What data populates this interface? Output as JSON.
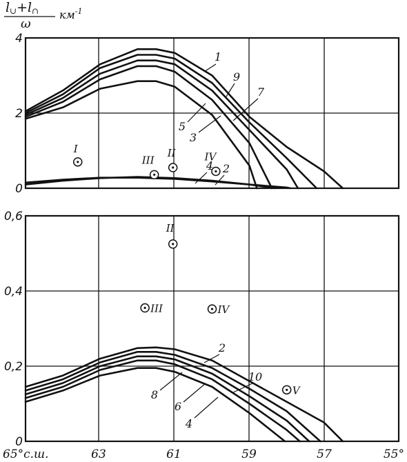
{
  "chart_data": [
    {
      "type": "line",
      "ylabel": "(l∪+l∩)/ω  км⁻¹",
      "ylim": [
        0,
        4
      ],
      "xlim": [
        65,
        55
      ],
      "grid": true,
      "y_ticks": [
        "0",
        "2",
        "4"
      ],
      "series": [
        {
          "name": "1",
          "x": [
            65,
            64,
            63,
            62,
            61.5,
            61,
            60,
            59,
            58,
            57,
            56.5
          ],
          "values": [
            2.05,
            2.6,
            3.3,
            3.7,
            3.7,
            3.6,
            3.0,
            1.9,
            1.1,
            0.45,
            0.0
          ]
        },
        {
          "name": "9",
          "x": [
            65,
            64,
            63,
            62,
            61.5,
            61,
            60,
            59,
            58,
            57.2
          ],
          "values": [
            2.0,
            2.5,
            3.2,
            3.55,
            3.55,
            3.45,
            2.8,
            1.75,
            0.8,
            0.0
          ]
        },
        {
          "name": "7",
          "x": [
            65,
            64,
            63,
            62,
            61.5,
            61,
            60,
            59,
            58,
            57.7
          ],
          "values": [
            1.95,
            2.4,
            3.05,
            3.4,
            3.4,
            3.3,
            2.6,
            1.55,
            0.5,
            0.0
          ]
        },
        {
          "name": "5",
          "x": [
            65,
            64,
            63,
            62,
            61.5,
            61,
            60,
            59,
            58.4
          ],
          "values": [
            1.9,
            2.3,
            2.9,
            3.25,
            3.25,
            3.1,
            2.35,
            1.2,
            0.0
          ]
        },
        {
          "name": "3",
          "x": [
            65,
            64,
            63,
            62,
            61.5,
            61,
            60,
            59,
            58.8
          ],
          "values": [
            1.85,
            2.15,
            2.65,
            2.85,
            2.85,
            2.7,
            1.95,
            0.6,
            0.0
          ]
        },
        {
          "name": "4",
          "x": [
            65,
            64,
            63,
            62,
            61,
            60,
            59,
            58.3
          ],
          "values": [
            0.1,
            0.2,
            0.27,
            0.3,
            0.27,
            0.2,
            0.1,
            0.0
          ]
        },
        {
          "name": "2",
          "x": [
            65,
            64,
            63,
            62,
            61,
            60,
            59,
            58,
            57.9
          ],
          "values": [
            0.15,
            0.23,
            0.28,
            0.28,
            0.25,
            0.18,
            0.1,
            0.02,
            0.0
          ]
        }
      ],
      "points": [
        {
          "label": "I",
          "x": 63.6,
          "y": 0.7
        },
        {
          "label": "III",
          "x": 61.55,
          "y": 0.36
        },
        {
          "label": "II",
          "x": 61.05,
          "y": 0.55
        },
        {
          "label": "IV",
          "x": 59.9,
          "y": 0.45
        }
      ]
    },
    {
      "type": "line",
      "ylim": [
        0,
        0.6
      ],
      "xlim": [
        65,
        55
      ],
      "grid": true,
      "y_ticks": [
        "0",
        "0,2",
        "0,4",
        "0,6"
      ],
      "x_ticks": [
        "65°с.ш.",
        "63",
        "61",
        "59",
        "57",
        "55°"
      ],
      "series": [
        {
          "name": "2",
          "x": [
            65,
            64,
            63,
            62,
            61.5,
            61,
            60,
            59,
            58,
            57,
            56.5
          ],
          "values": [
            0.145,
            0.175,
            0.22,
            0.248,
            0.25,
            0.245,
            0.215,
            0.16,
            0.105,
            0.05,
            0.0
          ]
        },
        {
          "name": "10",
          "x": [
            65,
            64,
            63,
            62,
            61.5,
            61,
            60,
            59,
            58,
            57.1
          ],
          "values": [
            0.135,
            0.165,
            0.21,
            0.238,
            0.238,
            0.23,
            0.195,
            0.14,
            0.08,
            0.0
          ]
        },
        {
          "name": "6",
          "x": [
            65,
            64,
            63,
            62,
            61.5,
            61,
            60,
            59,
            58,
            57.4
          ],
          "values": [
            0.125,
            0.155,
            0.2,
            0.226,
            0.226,
            0.218,
            0.18,
            0.12,
            0.055,
            0.0
          ]
        },
        {
          "name": "4",
          "x": [
            65,
            64,
            63,
            62,
            61.5,
            61,
            60,
            59,
            58,
            57.65
          ],
          "values": [
            0.115,
            0.145,
            0.19,
            0.215,
            0.215,
            0.205,
            0.165,
            0.1,
            0.03,
            0.0
          ]
        },
        {
          "name": "8",
          "x": [
            65,
            64,
            63,
            62,
            61.5,
            61,
            60,
            59,
            58.05
          ],
          "values": [
            0.105,
            0.135,
            0.175,
            0.195,
            0.195,
            0.185,
            0.145,
            0.075,
            0.0
          ]
        }
      ],
      "points": [
        {
          "label": "II",
          "x": 61.05,
          "y": 0.525
        },
        {
          "label": "III",
          "x": 61.8,
          "y": 0.355
        },
        {
          "label": "IV",
          "x": 60.0,
          "y": 0.352
        },
        {
          "label": "V",
          "x": 58.0,
          "y": 0.137
        }
      ]
    }
  ],
  "curve_labels_top": [
    "1",
    "9",
    "7",
    "5",
    "3",
    "4",
    "2"
  ],
  "curve_labels_bottom": [
    "2",
    "10",
    "8",
    "6",
    "4"
  ]
}
